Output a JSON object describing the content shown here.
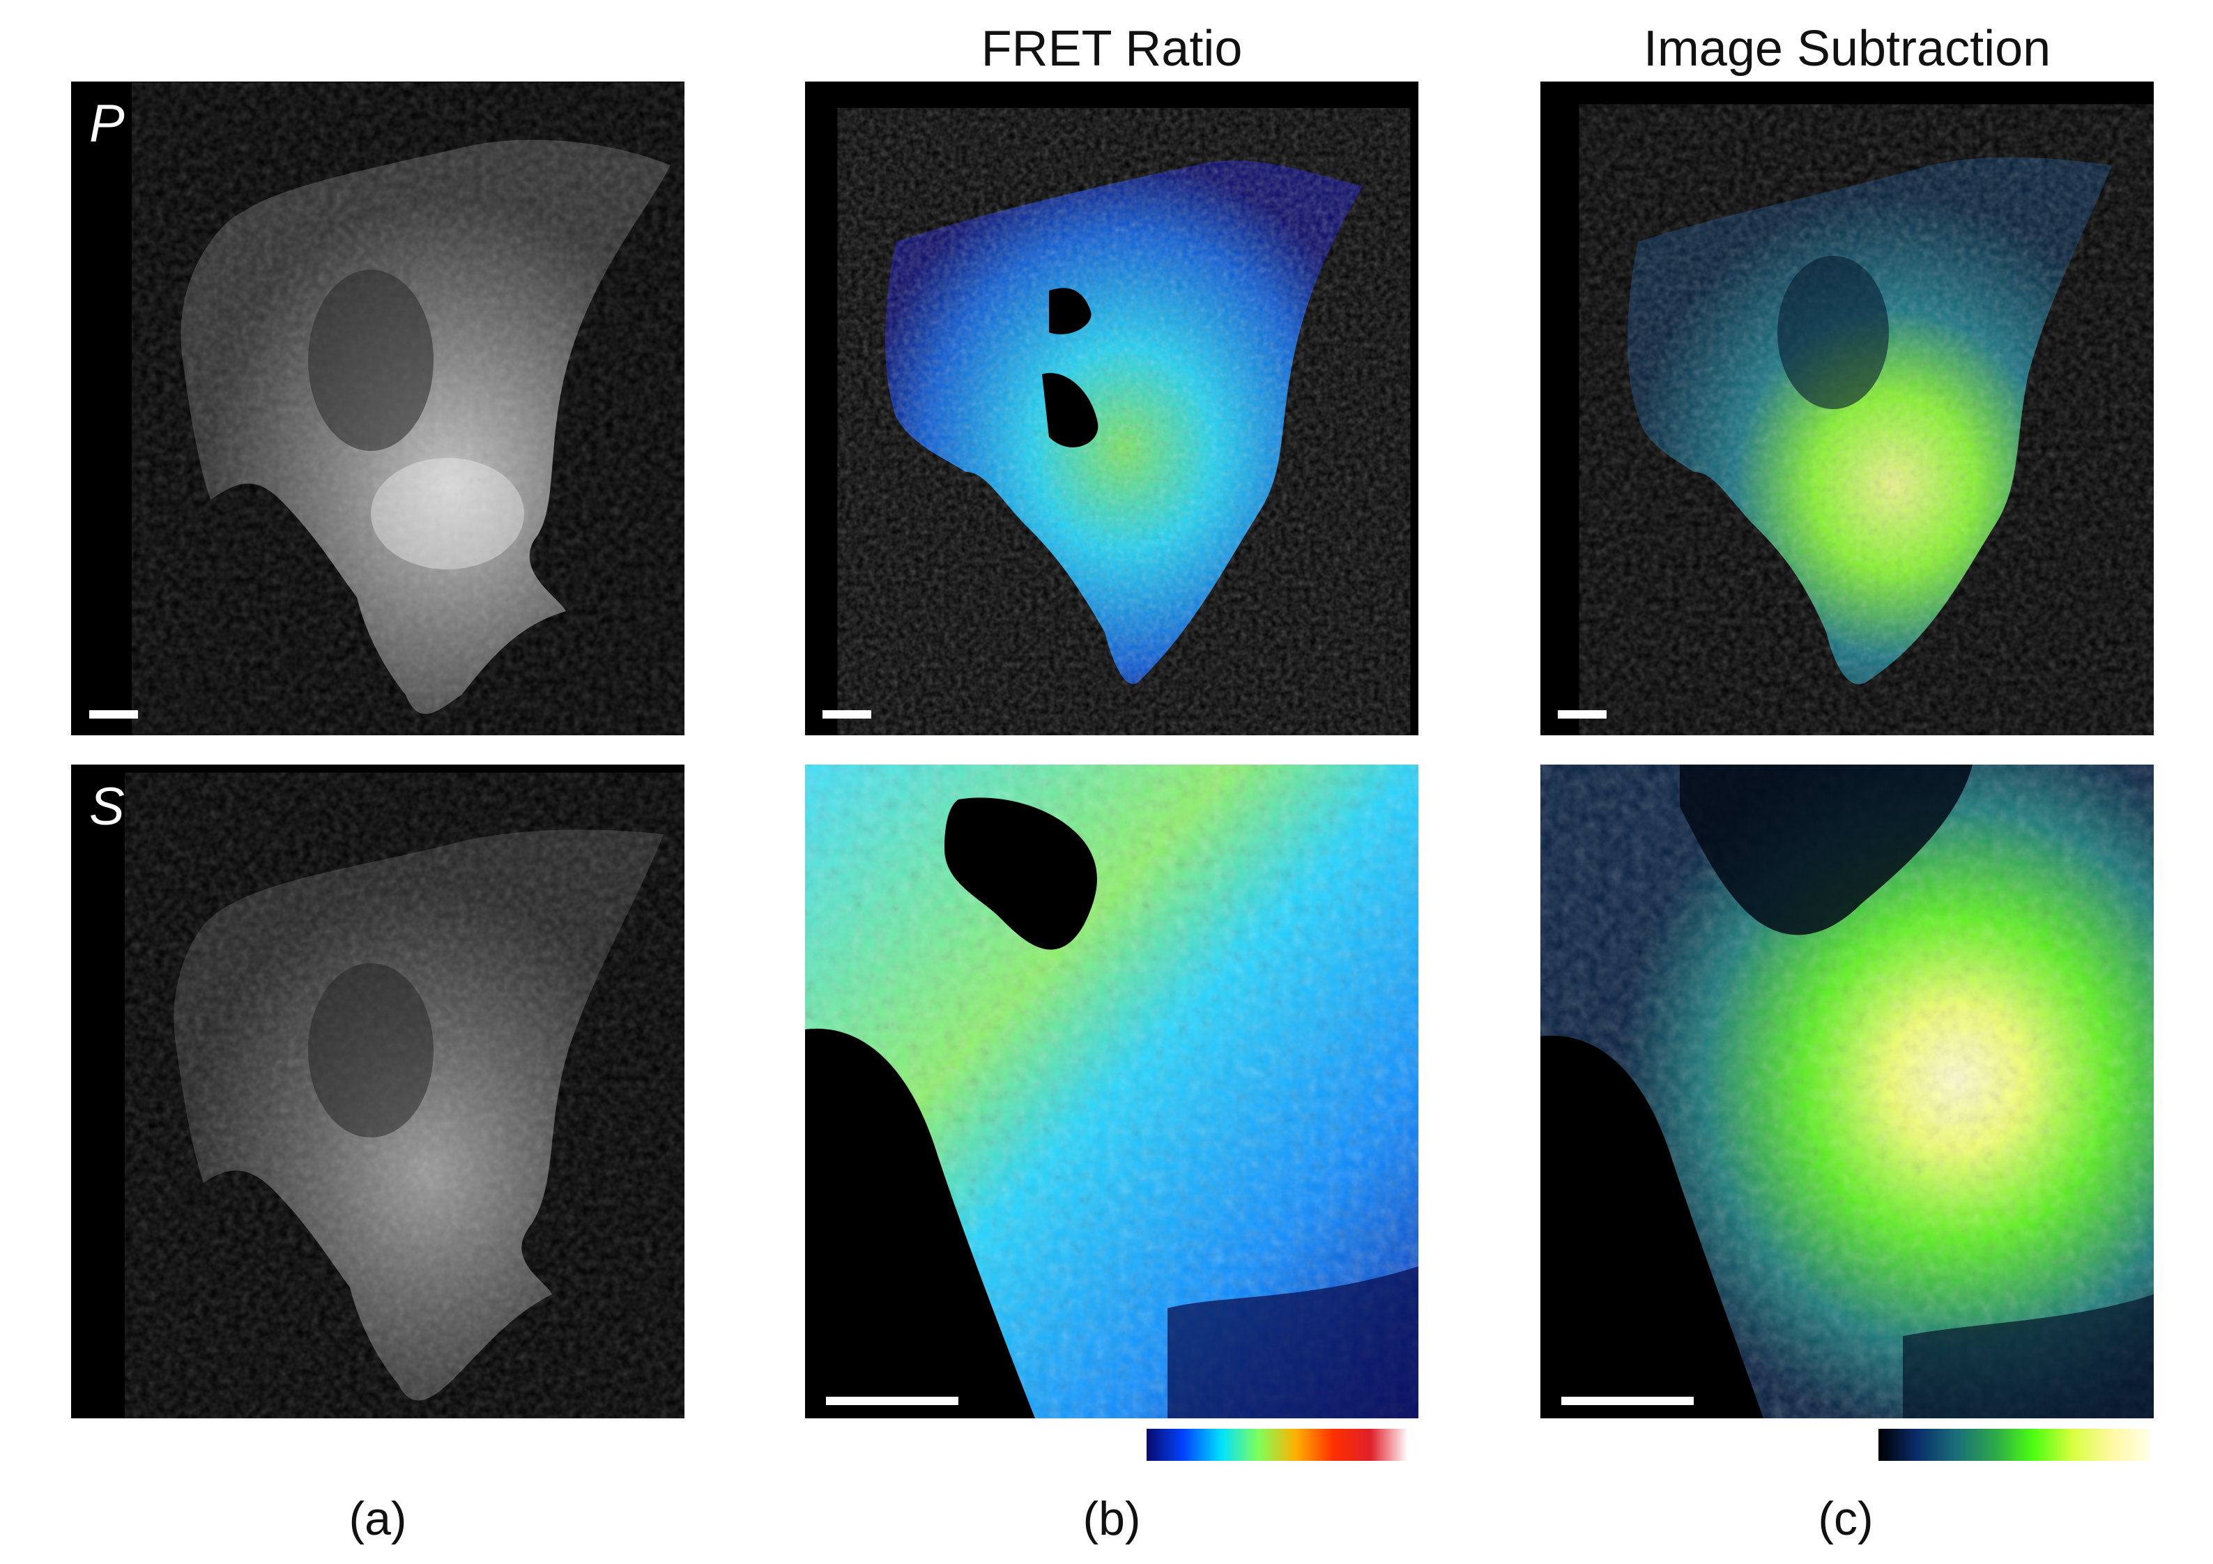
{
  "titles": {
    "fret_ratio": "FRET Ratio",
    "image_subtraction": "Image Subtraction"
  },
  "panel_labels": {
    "p": "P",
    "s": "S"
  },
  "column_labels": {
    "a": "(a)",
    "b": "(b)",
    "c": "(c)"
  },
  "colormaps": {
    "fret_ratio": [
      "#0a0a6e",
      "#0044ff",
      "#00e0ff",
      "#7fff5a",
      "#ffb000",
      "#ff3000",
      "#e0202a",
      "#ffffff"
    ],
    "image_subtraction": [
      "#000000",
      "#0a2d6a",
      "#1a6e7a",
      "#2ea84a",
      "#4cff10",
      "#d8ff40",
      "#fff8a0",
      "#ffffe8"
    ]
  },
  "colors": {
    "background": "#ffffff",
    "panel_background": "#000000",
    "scalebar": "#ffffff"
  }
}
